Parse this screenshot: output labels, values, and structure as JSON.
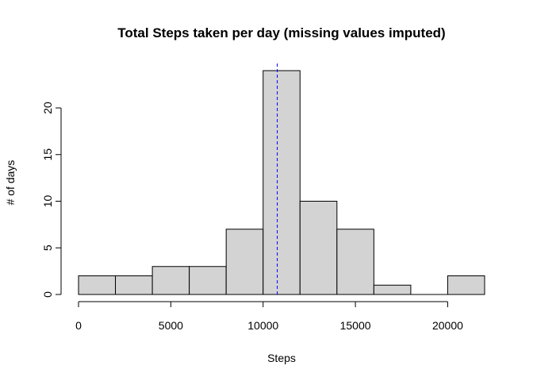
{
  "chart_data": {
    "type": "bar",
    "title": "Total Steps taken per day (missing values imputed)",
    "xlabel": "Steps",
    "ylabel": "# of days",
    "bins": [
      {
        "from": 0,
        "to": 2000,
        "count": 2
      },
      {
        "from": 2000,
        "to": 4000,
        "count": 2
      },
      {
        "from": 4000,
        "to": 6000,
        "count": 3
      },
      {
        "from": 6000,
        "to": 8000,
        "count": 3
      },
      {
        "from": 8000,
        "to": 10000,
        "count": 7
      },
      {
        "from": 10000,
        "to": 12000,
        "count": 24
      },
      {
        "from": 12000,
        "to": 14000,
        "count": 10
      },
      {
        "from": 14000,
        "to": 16000,
        "count": 7
      },
      {
        "from": 16000,
        "to": 18000,
        "count": 1
      },
      {
        "from": 18000,
        "to": 20000,
        "count": 0
      },
      {
        "from": 20000,
        "to": 22000,
        "count": 2
      }
    ],
    "xlim": [
      0,
      22000
    ],
    "ylim": [
      0,
      24
    ],
    "xticks": [
      0,
      5000,
      10000,
      15000,
      20000
    ],
    "yticks": [
      0,
      5,
      10,
      15,
      20
    ],
    "reference_line": {
      "x": 10766,
      "style": "dashed",
      "color": "#0000ff"
    },
    "bar_fill": "#d3d3d3",
    "grid": false,
    "legend": "none"
  }
}
